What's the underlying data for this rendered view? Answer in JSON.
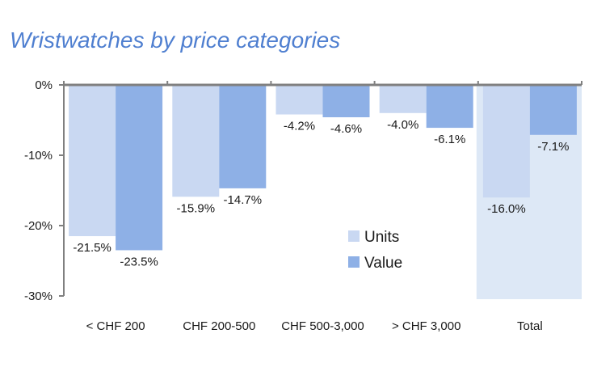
{
  "chart_data": {
    "type": "bar",
    "title": "Wristwatches by price categories",
    "categories": [
      "< CHF 200",
      "CHF 200-500",
      "CHF 500-3,000",
      "> CHF 3,000",
      "Total"
    ],
    "series": [
      {
        "name": "Units",
        "values": [
          -21.5,
          -15.9,
          -4.2,
          -4.0,
          -16.0
        ],
        "labels": [
          "-21.5%",
          "-15.9%",
          "-4.2%",
          "-4.0%",
          "-16.0%"
        ],
        "color": "#c9d8f2"
      },
      {
        "name": "Value",
        "values": [
          -23.5,
          -14.7,
          -4.6,
          -6.1,
          -7.1
        ],
        "labels": [
          "-23.5%",
          "-14.7%",
          "-4.6%",
          "-6.1%",
          "-7.1%"
        ],
        "color": "#8eb0e6"
      }
    ],
    "yticks": [
      "0%",
      "-10%",
      "-20%",
      "-30%"
    ],
    "ytick_values": [
      0,
      -10,
      -20,
      -30
    ],
    "ylim": [
      -30,
      0
    ],
    "highlight_category": "Total",
    "highlight_color": "#dde8f6",
    "legend_position": "center"
  }
}
